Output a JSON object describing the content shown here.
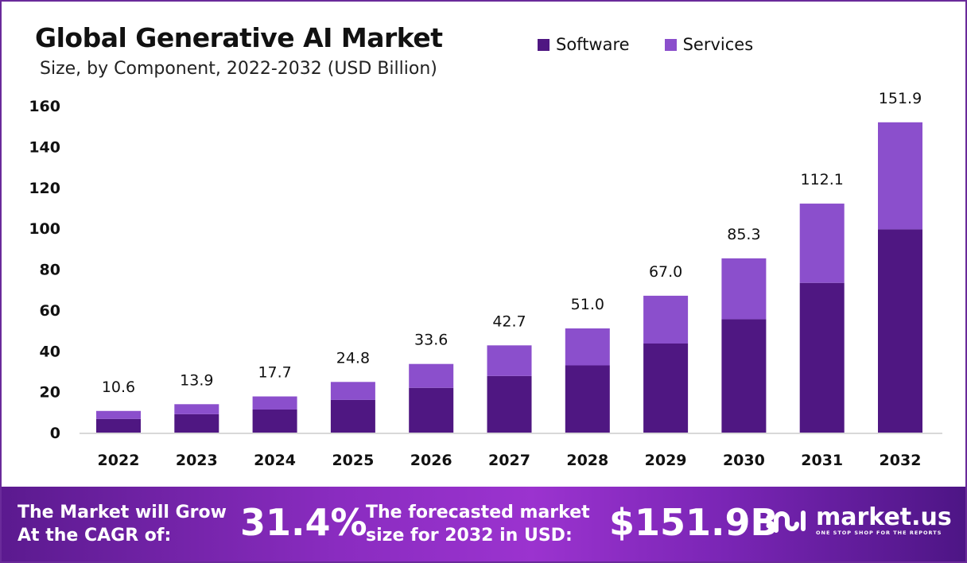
{
  "chart_data": {
    "type": "bar",
    "stacked": true,
    "title": "Global Generative AI Market",
    "subtitle": "Size, by Component, 2022-2032 (USD Billion)",
    "xlabel": "",
    "ylabel": "",
    "ylim": [
      0,
      160
    ],
    "yticks": [
      0,
      20,
      40,
      60,
      80,
      100,
      120,
      140,
      160
    ],
    "grid": false,
    "legend_position": "top-right",
    "categories": [
      "2022",
      "2023",
      "2024",
      "2025",
      "2026",
      "2027",
      "2028",
      "2029",
      "2030",
      "2031",
      "2032"
    ],
    "series": [
      {
        "name": "Software",
        "color": "#4f1782",
        "values": [
          6.7,
          9.0,
          11.3,
          16.0,
          21.9,
          27.7,
          32.9,
          43.6,
          55.5,
          73.3,
          99.5
        ]
      },
      {
        "name": "Services",
        "color": "#8b4fcc",
        "values": [
          3.9,
          4.9,
          6.4,
          8.8,
          11.7,
          15.0,
          18.1,
          23.4,
          29.8,
          38.8,
          52.4
        ]
      }
    ],
    "totals": [
      "10.6",
      "13.9",
      "17.7",
      "24.8",
      "33.6",
      "42.7",
      "51.0",
      "67.0",
      "85.3",
      "112.1",
      "151.9"
    ]
  },
  "footer": {
    "cagr_label": "The Market will Grow At the CAGR of:",
    "cagr_value": "31.4%",
    "forecast_label": "The forecasted market size for 2032 in USD:",
    "forecast_value": "$151.9B",
    "brand": "market.us",
    "brand_tagline": "ONE STOP SHOP FOR THE REPORTS"
  }
}
